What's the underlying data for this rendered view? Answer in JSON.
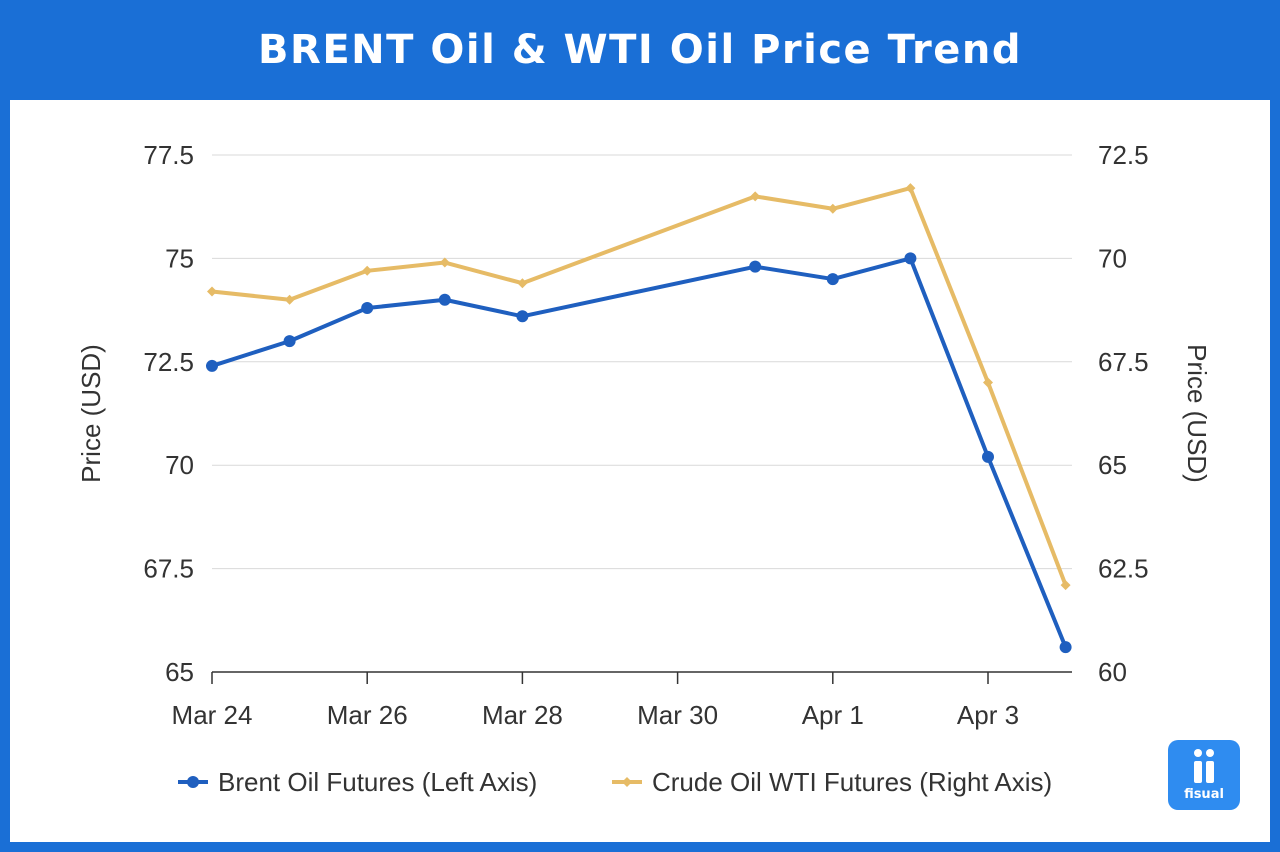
{
  "header": {
    "title": "BRENT Oil & WTI Oil Price Trend"
  },
  "logo": {
    "text": "fisual"
  },
  "chart_data": {
    "type": "line",
    "title": "BRENT Oil & WTI Oil Price Trend",
    "x": [
      "2025-03-24",
      "2025-03-25",
      "2025-03-26",
      "2025-03-27",
      "2025-03-28",
      "2025-03-31",
      "2025-04-01",
      "2025-04-02",
      "2025-04-03",
      "2025-04-04"
    ],
    "xticks": [
      {
        "date": "2025-03-24",
        "label": "Mar 24"
      },
      {
        "date": "2025-03-26",
        "label": "Mar 26"
      },
      {
        "date": "2025-03-28",
        "label": "Mar 28"
      },
      {
        "date": "2025-03-30",
        "label": "Mar 30"
      },
      {
        "date": "2025-04-01",
        "label": "Apr 1"
      },
      {
        "date": "2025-04-03",
        "label": "Apr 3"
      }
    ],
    "ylabel_left": "Price (USD)",
    "ylabel_right": "Price (USD)",
    "ylim_left": [
      65,
      77.5
    ],
    "ylim_right": [
      60,
      72.5
    ],
    "yticks_left": [
      "65",
      "67.5",
      "70",
      "72.5",
      "75",
      "77.5"
    ],
    "yticks_right": [
      "60",
      "62.5",
      "65",
      "67.5",
      "70",
      "72.5"
    ],
    "grid": true,
    "legend_position": "bottom",
    "series": [
      {
        "name": "Brent Oil Futures (Left Axis)",
        "axis": "left",
        "color": "#1f5fbf",
        "marker": "circle",
        "values": [
          72.4,
          73.0,
          73.8,
          74.0,
          73.6,
          74.8,
          74.5,
          75.0,
          70.2,
          65.6
        ]
      },
      {
        "name": "Crude Oil WTI Futures (Right Axis)",
        "axis": "right",
        "color": "#e6bb66",
        "marker": "diamond",
        "values": [
          69.2,
          69.0,
          69.7,
          69.9,
          69.4,
          71.5,
          71.2,
          71.7,
          67.0,
          62.1
        ]
      }
    ]
  }
}
